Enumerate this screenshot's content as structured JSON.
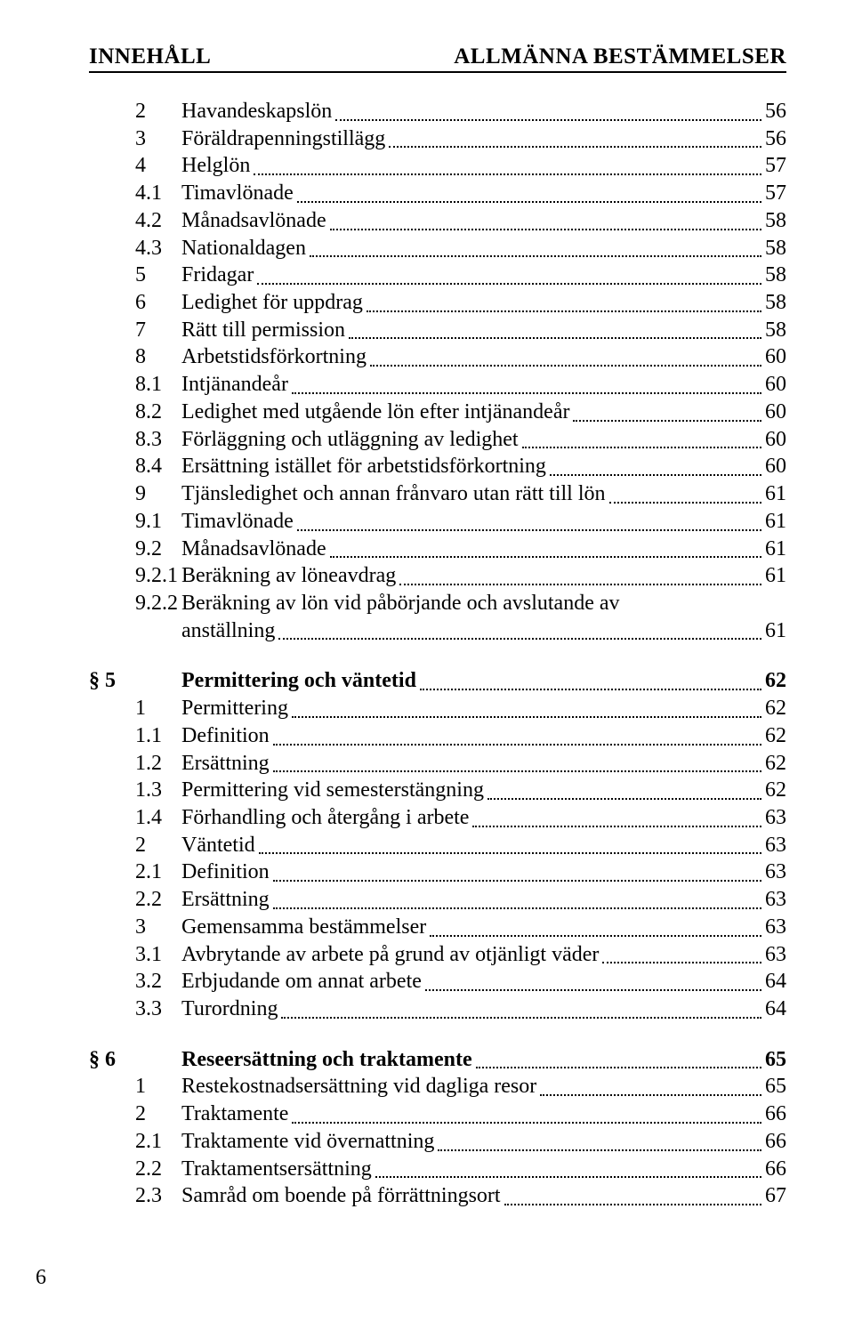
{
  "header": {
    "left": "INNEHÅLL",
    "right": "ALLMÄNNA BESTÄMMELSER"
  },
  "pageNumber": "6",
  "groups": [
    {
      "section": null,
      "entries": [
        {
          "num": "2",
          "text": "Havandeskapslön",
          "page": "56"
        },
        {
          "num": "3",
          "text": "Föräldrapenningstillägg",
          "page": "56"
        },
        {
          "num": "4",
          "text": "Helglön",
          "page": "57"
        },
        {
          "num": "4.1",
          "text": "Timavlönade",
          "page": "57"
        },
        {
          "num": "4.2",
          "text": "Månadsavlönade",
          "page": "58"
        },
        {
          "num": "4.3",
          "text": "Nationaldagen",
          "page": "58"
        },
        {
          "num": "5",
          "text": "Fridagar",
          "page": "58"
        },
        {
          "num": "6",
          "text": "Ledighet för uppdrag",
          "page": "58"
        },
        {
          "num": "7",
          "text": "Rätt till permission",
          "page": "58"
        },
        {
          "num": "8",
          "text": "Arbetstidsförkortning",
          "page": "60"
        },
        {
          "num": "8.1",
          "text": "Intjänandeår",
          "page": "60"
        },
        {
          "num": "8.2",
          "text": "Ledighet med utgående lön efter intjänandeår",
          "page": "60"
        },
        {
          "num": "8.3",
          "text": "Förläggning och utläggning av ledighet",
          "page": "60"
        },
        {
          "num": "8.4",
          "text": "Ersättning istället för arbetstidsförkortning",
          "page": "60"
        },
        {
          "num": "9",
          "text": "Tjänsledighet och annan frånvaro utan rätt till lön",
          "page": "61"
        },
        {
          "num": "9.1",
          "text": "Timavlönade",
          "page": "61"
        },
        {
          "num": "9.2",
          "text": "Månadsavlönade",
          "page": "61"
        },
        {
          "num": "9.2.1",
          "text": "Beräkning av löneavdrag",
          "page": "61"
        },
        {
          "num": "9.2.2",
          "text": [
            "Beräkning av lön vid påbörjande och avslutande av",
            "anställning"
          ],
          "page": "61",
          "multiline": true
        }
      ]
    },
    {
      "section": {
        "num": "§ 5",
        "text": "Permittering och väntetid",
        "page": "62"
      },
      "entries": [
        {
          "num": "1",
          "text": "Permittering",
          "page": "62"
        },
        {
          "num": "1.1",
          "text": "Definition",
          "page": "62"
        },
        {
          "num": "1.2",
          "text": "Ersättning",
          "page": "62"
        },
        {
          "num": "1.3",
          "text": "Permittering vid semesterstängning",
          "page": "62"
        },
        {
          "num": "1.4",
          "text": "Förhandling och återgång i arbete",
          "page": "63"
        },
        {
          "num": "2",
          "text": "Väntetid",
          "page": "63"
        },
        {
          "num": "2.1",
          "text": "Definition",
          "page": "63"
        },
        {
          "num": "2.2",
          "text": "Ersättning",
          "page": "63"
        },
        {
          "num": "3",
          "text": "Gemensamma bestämmelser",
          "page": "63"
        },
        {
          "num": "3.1",
          "text": "Avbrytande av arbete på grund av otjänligt väder",
          "page": "63"
        },
        {
          "num": "3.2",
          "text": "Erbjudande om annat arbete",
          "page": "64"
        },
        {
          "num": "3.3",
          "text": "Turordning",
          "page": "64"
        }
      ]
    },
    {
      "section": {
        "num": "§ 6",
        "text": "Reseersättning och traktamente",
        "page": "65"
      },
      "entries": [
        {
          "num": "1",
          "text": "Restekostnadsersättning vid dagliga resor",
          "page": "65"
        },
        {
          "num": "2",
          "text": "Traktamente",
          "page": "66"
        },
        {
          "num": "2.1",
          "text": "Traktamente vid övernattning",
          "page": "66"
        },
        {
          "num": "2.2",
          "text": "Traktamentsersättning",
          "page": "66"
        },
        {
          "num": "2.3",
          "text": "Samråd om boende på förrättningsort",
          "page": "67"
        }
      ]
    }
  ]
}
